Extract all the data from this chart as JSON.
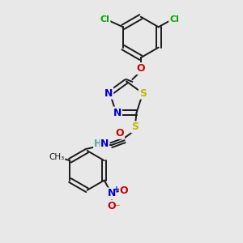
{
  "bg_color": "#e8e8e8",
  "bond_color": "#1a1a1a",
  "atom_colors": {
    "N": "#0000cc",
    "O": "#cc0000",
    "S": "#bbbb00",
    "Cl": "#00aa00",
    "H": "#5f9ea0",
    "C": "#1a1a1a"
  },
  "font_size": 8.5,
  "bond_width": 1.4,
  "figsize": [
    3.0,
    3.0
  ],
  "dpi": 100,
  "xlim": [
    0,
    10
  ],
  "ylim": [
    0,
    10
  ]
}
